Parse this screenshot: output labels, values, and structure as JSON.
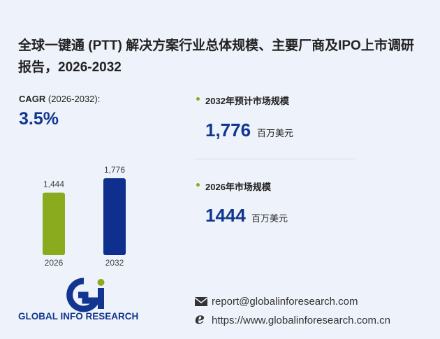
{
  "title": "全球一键通 (PTT) 解决方案行业总体规模、主要厂商及IPO上市调研报告，2026-2032",
  "cagr": {
    "label": "CAGR",
    "period": "(2026-2032):",
    "value": "3.5%"
  },
  "stats": [
    {
      "label": "2032年预计市场规模",
      "value": "1,776",
      "unit": "百万美元"
    },
    {
      "label": "2026年市场规模",
      "value": "1444",
      "unit": "百万美元"
    }
  ],
  "logo": "GLOBAL INFO RESEARCH",
  "contact": {
    "email": "report@globalinforesearch.com",
    "website": "https://www.globalinforesearch.com.cn"
  },
  "chart_data": {
    "type": "bar",
    "categories": [
      "2026",
      "2032"
    ],
    "values": [
      1444,
      1776
    ],
    "value_labels": [
      "1,444",
      "1,776"
    ],
    "colors": [
      "#8aab1e",
      "#0f2f8e"
    ]
  }
}
